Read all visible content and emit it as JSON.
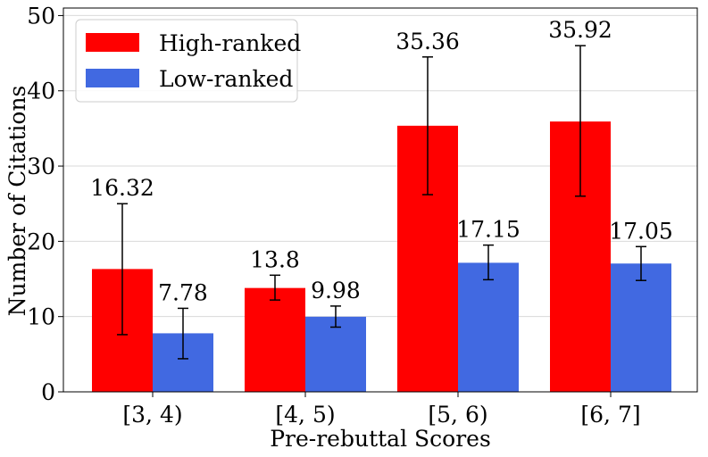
{
  "chart_data": {
    "type": "bar",
    "categories": [
      "[3, 4)",
      "[4, 5)",
      "[5, 6)",
      "[6, 7]"
    ],
    "series": [
      {
        "name": "High-ranked",
        "color": "#ff0000",
        "values": [
          16.32,
          13.8,
          35.36,
          35.92
        ],
        "labels": [
          "16.32",
          "13.8",
          "35.36",
          "35.92"
        ],
        "err_low": [
          7.6,
          12.2,
          26.2,
          26.0
        ],
        "err_high": [
          25.0,
          15.5,
          44.5,
          46.0
        ]
      },
      {
        "name": "Low-ranked",
        "color": "#4169e1",
        "values": [
          7.78,
          9.98,
          17.15,
          17.05
        ],
        "labels": [
          "7.78",
          "9.98",
          "17.15",
          "17.05"
        ],
        "err_low": [
          4.4,
          8.6,
          14.9,
          14.8
        ],
        "err_high": [
          11.1,
          11.4,
          19.5,
          19.3
        ]
      }
    ],
    "xlabel": "Pre-rebuttal Scores",
    "ylabel": "Number of Citations",
    "ylim": [
      0,
      51
    ],
    "yticks": [
      "0",
      "10",
      "20",
      "30",
      "40",
      "50"
    ],
    "grid": "horizontal",
    "legend_position": "top-left"
  }
}
